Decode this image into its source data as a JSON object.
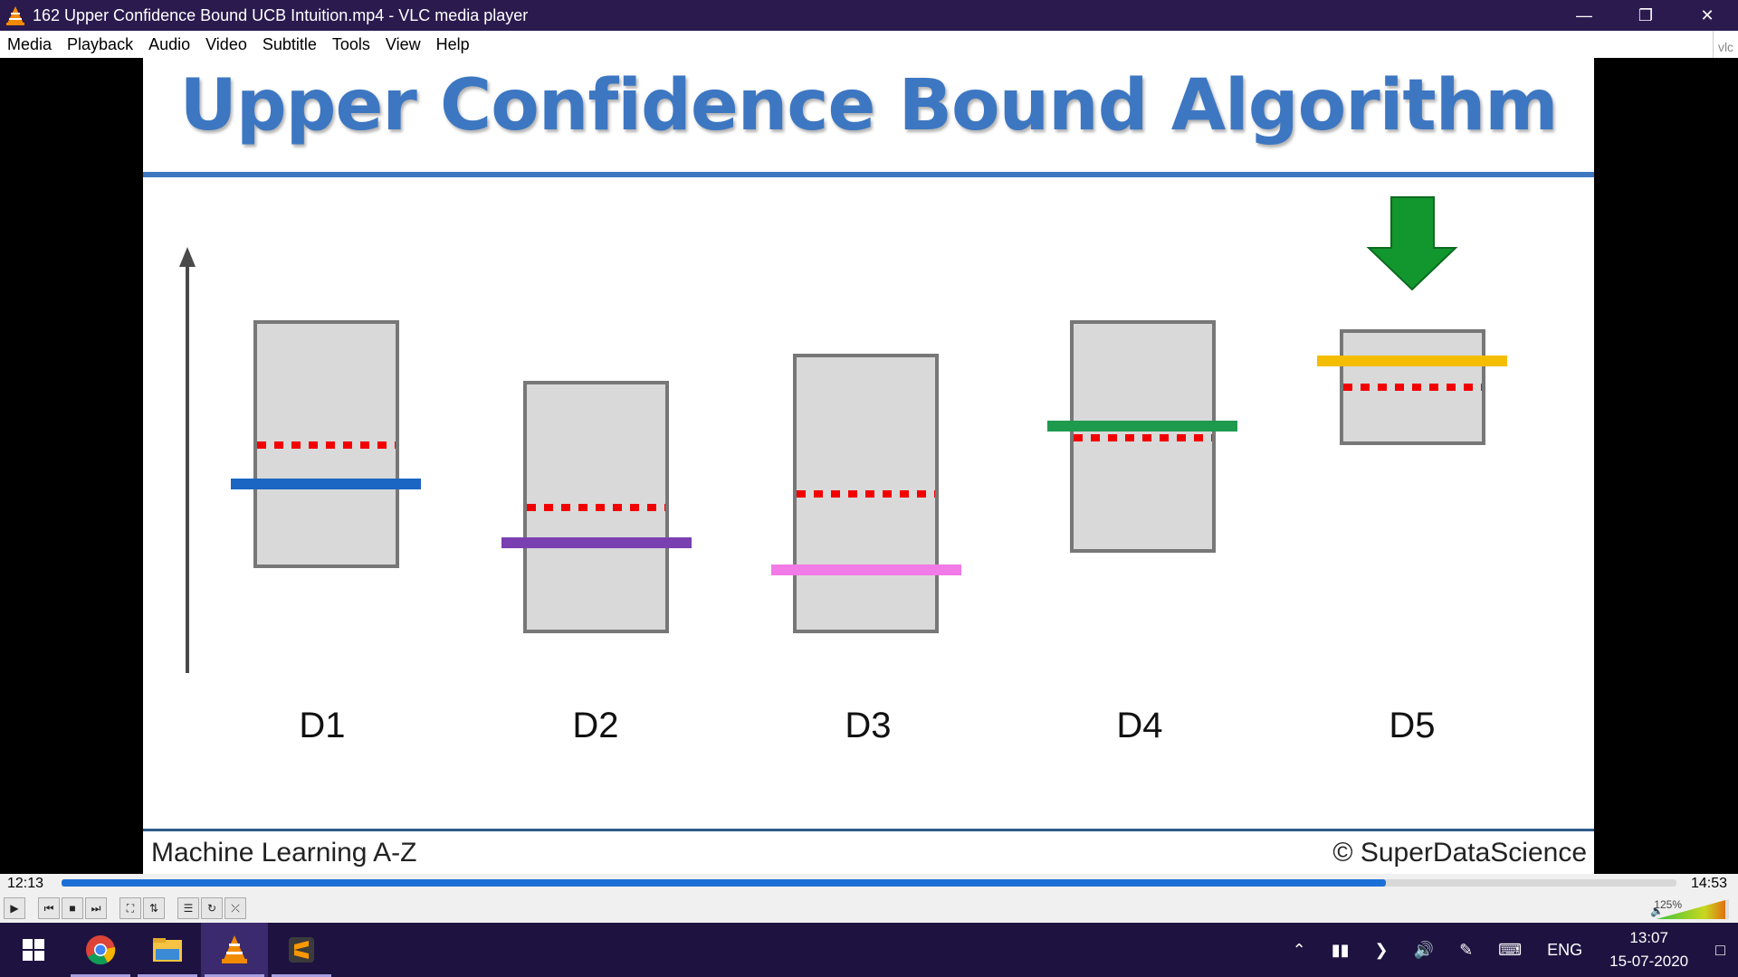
{
  "window": {
    "title": "162 Upper Confidence Bound UCB Intuition.mp4 - VLC media player",
    "buttons": [
      "minimize",
      "restore",
      "close"
    ]
  },
  "menu": {
    "items": [
      "Media",
      "Playback",
      "Audio",
      "Video",
      "Subtitle",
      "Tools",
      "View",
      "Help"
    ]
  },
  "side_strip": {
    "text": "vlc"
  },
  "slide": {
    "title": "Upper Confidence Bound Algorithm",
    "labels": [
      "D1",
      "D2",
      "D3",
      "D4",
      "D5"
    ],
    "footer_left": "Machine Learning A-Z",
    "footer_right": "© SuperDataScience",
    "colors": {
      "title": "#3d77c2",
      "d1_line": "#1a66c2",
      "d2_line": "#7a3fb0",
      "d3_line": "#f27ae6",
      "d4_line": "#1e9a4e",
      "d5_line": "#f5bd00",
      "dotted": "#f20000",
      "arrow": "#12962e"
    }
  },
  "player": {
    "current_time": "12:13",
    "total_time": "14:53",
    "progress": 0.82,
    "volume": "125%",
    "controls": [
      "play",
      "prev",
      "stop",
      "next",
      "fullscreen",
      "extended",
      "playlist",
      "loop",
      "random"
    ]
  },
  "taskbar": {
    "apps": [
      "start",
      "chrome",
      "file-explorer",
      "vlc",
      "sublime-text"
    ],
    "active": "vlc",
    "tray": {
      "language": "ENG",
      "time": "13:07",
      "date": "15-07-2020"
    }
  }
}
